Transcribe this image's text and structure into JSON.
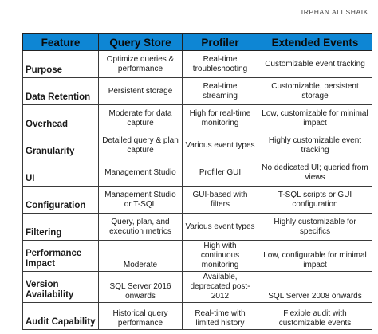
{
  "author": "IRPHAN ALI SHAIK",
  "table": {
    "headers": [
      "Feature",
      "Query Store",
      "Profiler",
      "Extended Events"
    ],
    "rows": [
      [
        "Purpose",
        "Optimize queries & performance",
        "Real-time troubleshooting",
        "Customizable event tracking"
      ],
      [
        "Data Retention",
        "Persistent storage",
        "Real-time streaming",
        "Customizable, persistent storage"
      ],
      [
        "Overhead",
        "Moderate for data capture",
        "High for real-time monitoring",
        "Low, customizable for minimal impact"
      ],
      [
        "Granularity",
        "Detailed query & plan capture",
        "Various event types",
        "Highly customizable event tracking"
      ],
      [
        "UI",
        "Management Studio",
        "Profiler GUI",
        "No dedicated UI; queried from views"
      ],
      [
        "Configuration",
        "Management Studio or T-SQL",
        "GUI-based with filters",
        "T-SQL scripts or GUI configuration"
      ],
      [
        "Filtering",
        "Query, plan, and execution metrics",
        "Various event types",
        "Highly customizable for specifics"
      ],
      [
        "Performance Impact",
        "Moderate",
        "High with continuous monitoring",
        "Low, configurable for minimal impact"
      ],
      [
        "Version Availability",
        "SQL Server 2016 onwards",
        "Available, deprecated post-2012",
        "SQL Server 2008 onwards"
      ],
      [
        "Audit Capability",
        "Historical query performance",
        "Real-time with limited history",
        "Flexible audit with customizable events"
      ]
    ]
  }
}
